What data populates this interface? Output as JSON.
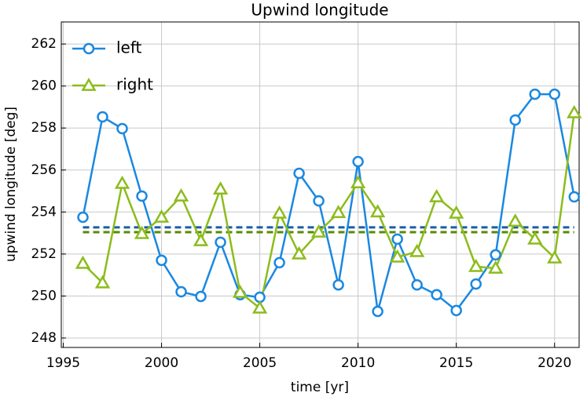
{
  "chart_data": {
    "type": "line",
    "title": "Upwind longitude",
    "xlabel": "time [yr]",
    "ylabel": "upwind longitude [deg]",
    "x": [
      1996,
      1997,
      1998,
      1999,
      2000,
      2001,
      2002,
      2003,
      2004,
      2005,
      2006,
      2007,
      2008,
      2009,
      2010,
      2011,
      2012,
      2013,
      2014,
      2015,
      2016,
      2017,
      2018,
      2019,
      2020,
      2021
    ],
    "series": [
      {
        "name": "left",
        "color": "#1a88e0",
        "marker": "circle",
        "values": [
          253.75,
          258.53,
          257.97,
          254.76,
          251.7,
          250.2,
          249.98,
          252.56,
          250.06,
          249.94,
          251.59,
          255.84,
          254.53,
          250.53,
          256.4,
          249.27,
          252.71,
          250.53,
          250.06,
          249.31,
          250.57,
          251.96,
          258.38,
          259.61,
          259.61,
          254.72
        ]
      },
      {
        "name": "right",
        "color": "#8cbc1c",
        "marker": "triangle",
        "values": [
          251.55,
          250.62,
          255.36,
          252.97,
          253.75,
          254.76,
          252.63,
          255.09,
          250.17,
          249.42,
          253.94,
          252.0,
          253.04,
          253.97,
          255.39,
          254.0,
          251.85,
          252.11,
          254.72,
          253.94,
          251.4,
          251.32,
          253.56,
          252.71,
          251.81,
          258.72
        ]
      }
    ],
    "hlines": [
      {
        "value": 253.27,
        "color": "#1a5ca8"
      },
      {
        "value": 253.04,
        "color": "#5a8a00"
      }
    ],
    "xlim": [
      1994.9,
      2021.25
    ],
    "ylim": [
      247.55,
      263.05
    ],
    "xticks": [
      1995,
      2000,
      2005,
      2010,
      2015,
      2020
    ],
    "yticks": [
      248,
      250,
      252,
      254,
      256,
      258,
      260,
      262
    ],
    "grid": true,
    "legend": "upper left"
  }
}
